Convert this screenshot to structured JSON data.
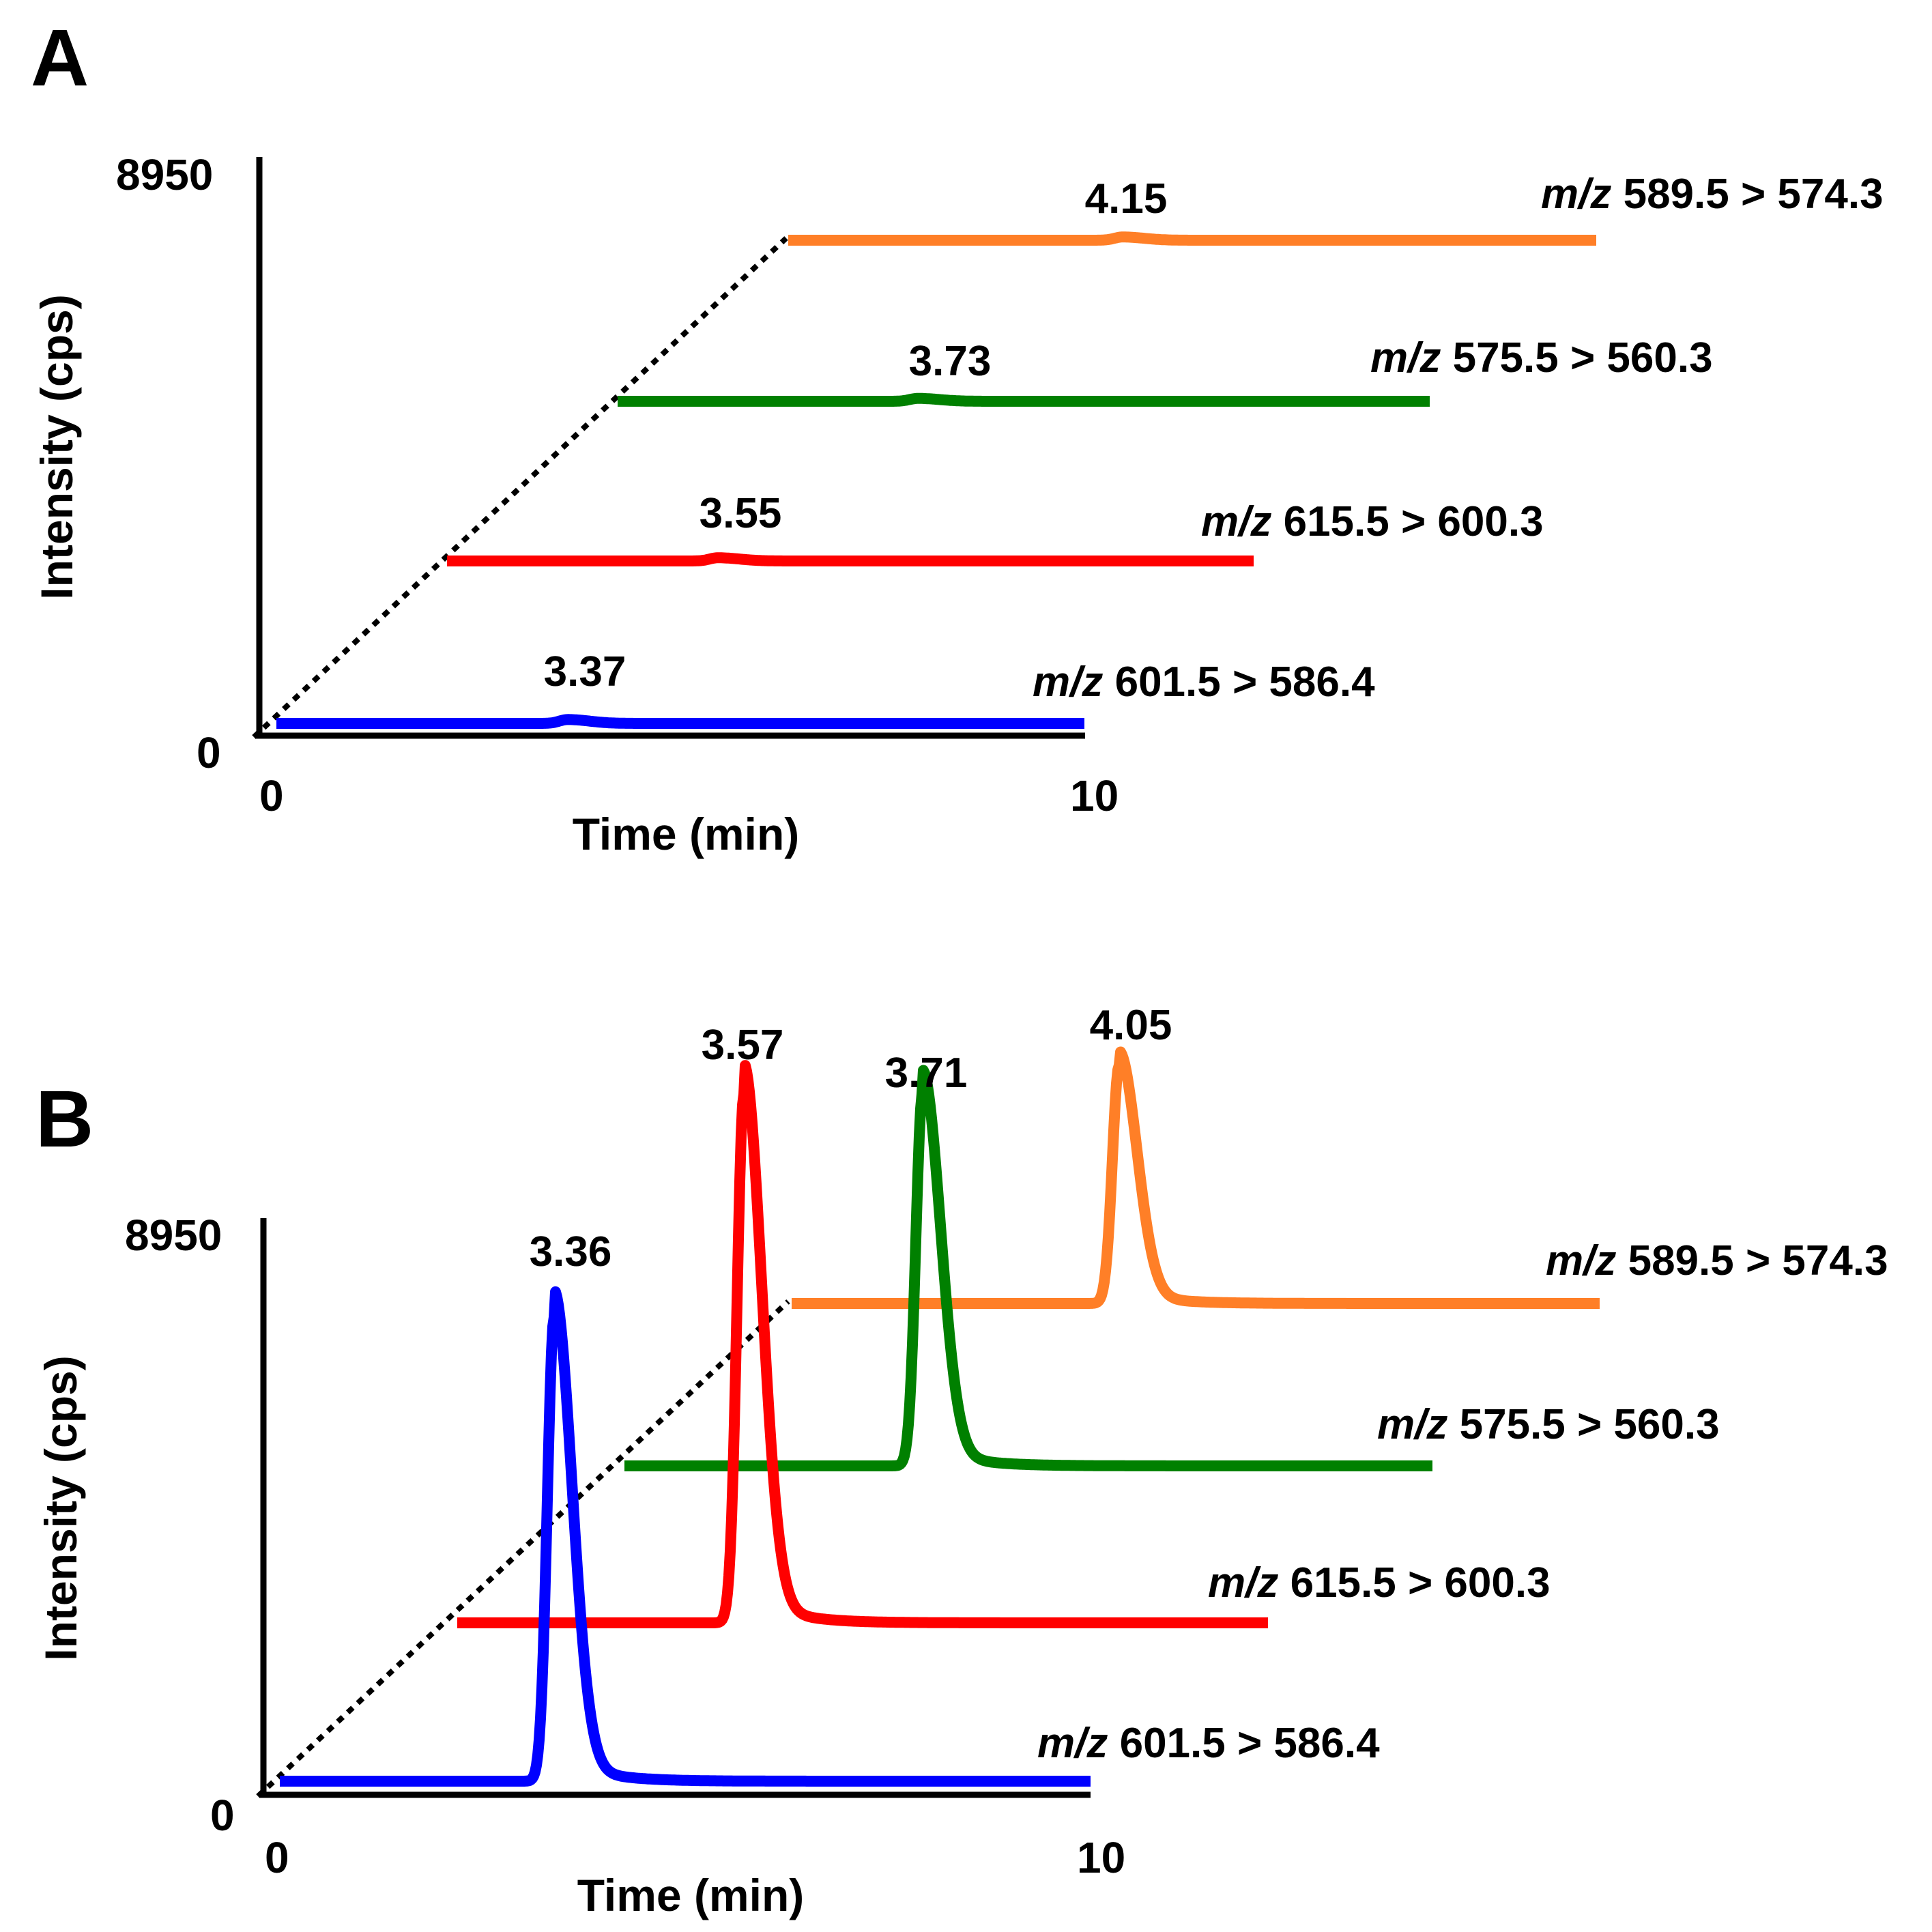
{
  "figure": {
    "panels": [
      "A",
      "B"
    ]
  },
  "chart_data": [
    {
      "panel": "A",
      "type": "line",
      "xlabel": "Time (min)",
      "ylabel": "Intensity (cps)",
      "x_ticks": [
        "0",
        "10"
      ],
      "y_ticks": [
        "0",
        "8950"
      ],
      "xlim": [
        0,
        10
      ],
      "ylim": [
        0,
        8950
      ],
      "grid": false,
      "offset_guide": "dotted diagonal line connecting trace baselines",
      "series": [
        {
          "name": "m/z 601.5 > 586.4",
          "mz_prefix": "m/z",
          "transition": "601.5 > 586.4",
          "color": "#0000FF",
          "peak_label": "3.37",
          "peak_rt": 3.37,
          "peak_height": 60
        },
        {
          "name": "m/z 615.5 > 600.3",
          "mz_prefix": "m/z",
          "transition": "615.5 > 600.3",
          "color": "#FF0000",
          "peak_label": "3.55",
          "peak_rt": 3.55,
          "peak_height": 50
        },
        {
          "name": "m/z 575.5 > 560.3",
          "mz_prefix": "m/z",
          "transition": "575.5 > 560.3",
          "color": "#008000",
          "peak_label": "3.73",
          "peak_rt": 3.73,
          "peak_height": 45
        },
        {
          "name": "m/z 589.5 > 574.3",
          "mz_prefix": "m/z",
          "transition": "589.5 > 574.3",
          "color": "#FF7F27",
          "peak_label": "4.15",
          "peak_rt": 4.15,
          "peak_height": 50
        }
      ]
    },
    {
      "panel": "B",
      "type": "line",
      "xlabel": "Time (min)",
      "ylabel": "Intensity (cps)",
      "x_ticks": [
        "0",
        "10"
      ],
      "y_ticks": [
        "0",
        "8950"
      ],
      "xlim": [
        0,
        10
      ],
      "ylim": [
        0,
        8950
      ],
      "grid": false,
      "offset_guide": "dotted diagonal line connecting trace baselines",
      "series": [
        {
          "name": "m/z 601.5 > 586.4",
          "mz_prefix": "m/z",
          "transition": "601.5 > 586.4",
          "color": "#0000FF",
          "peak_label": "3.36",
          "peak_rt": 3.36,
          "peak_height": 7200
        },
        {
          "name": "m/z 615.5 > 600.3",
          "mz_prefix": "m/z",
          "transition": "615.5 > 600.3",
          "color": "#FF0000",
          "peak_label": "3.57",
          "peak_rt": 3.57,
          "peak_height": 8200
        },
        {
          "name": "m/z 575.5 > 560.3",
          "mz_prefix": "m/z",
          "transition": "575.5 > 560.3",
          "color": "#008000",
          "peak_label": "3.71",
          "peak_rt": 3.71,
          "peak_height": 5800
        },
        {
          "name": "m/z 589.5 > 574.3",
          "mz_prefix": "m/z",
          "transition": "589.5 > 574.3",
          "color": "#FF7F27",
          "peak_label": "4.05",
          "peak_rt": 4.05,
          "peak_height": 3700
        }
      ]
    }
  ]
}
